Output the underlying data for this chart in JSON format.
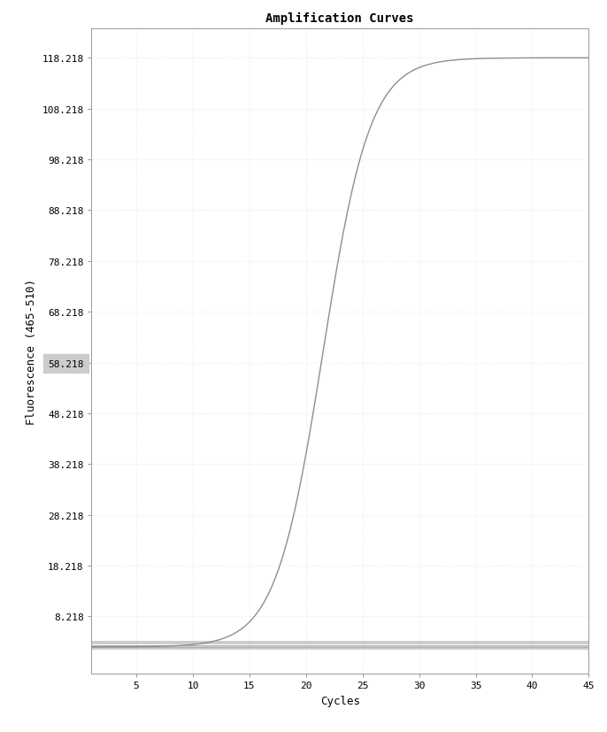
{
  "title": "Amplification Curves",
  "xlabel": "Cycles",
  "ylabel": "Fluorescence (465-510)",
  "xlim": [
    1,
    45
  ],
  "ylim": [
    -3,
    124
  ],
  "xticks": [
    5,
    10,
    15,
    20,
    25,
    30,
    35,
    40,
    45
  ],
  "yticks": [
    8.218,
    18.218,
    28.218,
    38.218,
    48.218,
    58.218,
    68.218,
    78.218,
    88.218,
    98.218,
    108.218,
    118.218
  ],
  "ytick_labels": [
    "8.218",
    "18.218",
    "28.218",
    "38.218",
    "48.218",
    "58.218",
    "68.218",
    "78.218",
    "88.218",
    "98.218",
    "108.218",
    "118.218"
  ],
  "sigmoid_color": "#888888",
  "flat_color": "#888888",
  "background_color": "#ffffff",
  "plot_bg_color": "#ffffff",
  "sigmoid_L": 116.0,
  "sigmoid_k": 0.48,
  "sigmoid_x0": 21.5,
  "sigmoid_baseline": 2.218,
  "flat_value": 2.218,
  "flat_offsets": [
    -0.4,
    -0.25,
    -0.1,
    0.0,
    0.1,
    0.25,
    0.4,
    0.6,
    0.8,
    1.0,
    1.2
  ],
  "title_fontsize": 10,
  "axis_label_fontsize": 9,
  "tick_fontsize": 8,
  "highlight_tick": "58.218"
}
